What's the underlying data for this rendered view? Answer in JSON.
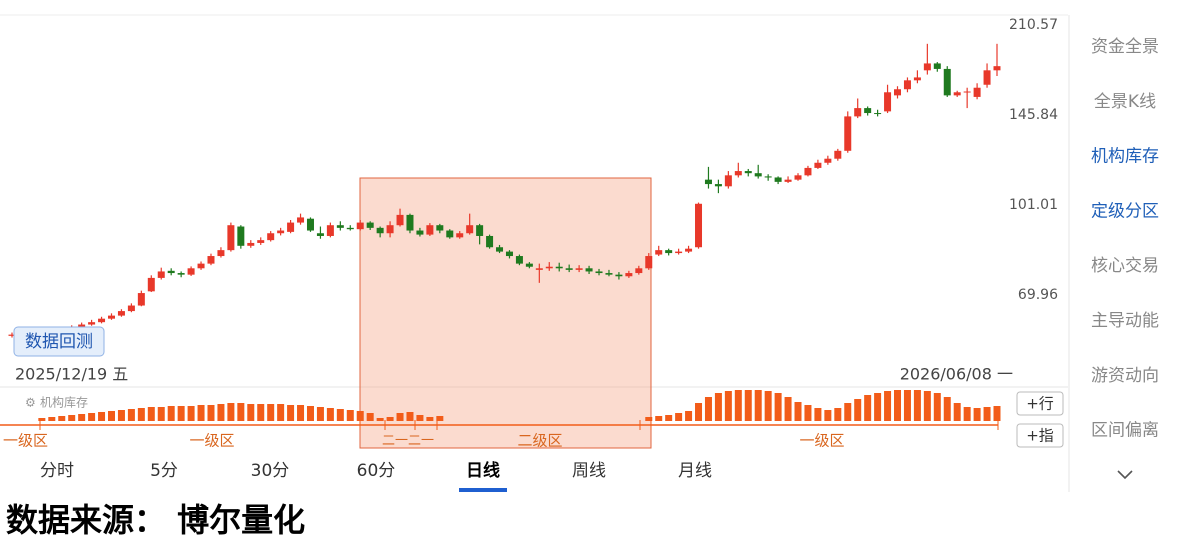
{
  "chart_data": {
    "type": "candlestick",
    "scale": "log",
    "ylim": [
      48.44,
      216.67
    ],
    "yticks": [
      69.96,
      101.01,
      145.84,
      210.57
    ],
    "start_label": "2025/12/19 五",
    "end_label": "2026/06/08 一",
    "up_color": "#e8382a",
    "down_color": "#1f7a1f",
    "open": [
      59.2,
      59.5,
      59.8,
      60.0,
      60.2,
      60.5,
      60.8,
      61.3,
      62.0,
      62.6,
      63.5,
      64.3,
      65.5,
      67.0,
      71.0,
      75.0,
      77.2,
      76.5,
      76.0,
      78.0,
      79.5,
      82.0,
      84.0,
      92.5,
      85.5,
      86.5,
      87.5,
      90.0,
      90.5,
      94.0,
      95.5,
      90.0,
      89.0,
      93.0,
      92.0,
      91.5,
      94.0,
      92.0,
      90.0,
      93.0,
      97.0,
      91.0,
      89.5,
      93.0,
      91.0,
      88.5,
      90.0,
      93.0,
      89.0,
      85.0,
      83.5,
      82.0,
      79.5,
      77.5,
      78.0,
      78.5,
      78.0,
      77.5,
      78.0,
      77.0,
      76.5,
      76.0,
      75.5,
      76.5,
      78.0,
      82.5,
      84.0,
      83.0,
      83.5,
      85.0,
      112,
      110,
      109,
      114,
      116,
      115,
      113.5,
      113,
      111,
      112,
      114,
      117.5,
      120,
      122,
      126,
      145,
      150,
      147,
      148,
      158,
      162,
      168,
      175,
      180,
      176,
      158,
      160,
      157,
      165,
      175
    ],
    "high": [
      60.0,
      60.2,
      60.5,
      60.7,
      61.0,
      61.3,
      61.8,
      62.5,
      63.2,
      64.0,
      64.9,
      66.0,
      67.6,
      71.2,
      75.8,
      78.2,
      78.0,
      77.0,
      78.6,
      80.2,
      82.8,
      85.0,
      94.0,
      93.0,
      87.5,
      88.5,
      90.8,
      92.0,
      95.0,
      97.5,
      96.0,
      92.5,
      94.0,
      94.5,
      93.0,
      95.0,
      94.5,
      92.5,
      94.5,
      99.5,
      97.5,
      92.0,
      93.8,
      93.5,
      91.5,
      90.8,
      97.5,
      93.5,
      89.5,
      85.8,
      84.0,
      82.5,
      80.0,
      79.5,
      80.0,
      79.8,
      79.2,
      79.0,
      78.8,
      77.8,
      77.5,
      76.8,
      77.2,
      78.8,
      83.0,
      85.5,
      84.5,
      84.5,
      85.5,
      102.0,
      118,
      112,
      116,
      120,
      117,
      119,
      114.5,
      113.5,
      113.5,
      115,
      118.5,
      121.5,
      123.5,
      127,
      148,
      156,
      151,
      149,
      165,
      164,
      170,
      175,
      195,
      181,
      178,
      161,
      163,
      166,
      180,
      195
    ],
    "low": [
      58.8,
      59.1,
      59.5,
      59.7,
      59.9,
      60.2,
      60.5,
      61.0,
      61.7,
      62.3,
      63.2,
      64.0,
      65.2,
      66.8,
      70.8,
      74.5,
      75.8,
      75.2,
      75.6,
      77.5,
      79.0,
      81.5,
      83.5,
      84.5,
      84.8,
      85.8,
      87.0,
      89.2,
      90.0,
      93.2,
      90.5,
      88.0,
      88.5,
      91.0,
      91.0,
      91.0,
      91.2,
      88.5,
      88.5,
      92.5,
      90.0,
      88.8,
      89.0,
      90.0,
      88.0,
      88.0,
      89.5,
      86.0,
      84.5,
      83.0,
      81.2,
      79.0,
      78.0,
      73.5,
      77.2,
      77.0,
      76.8,
      76.8,
      76.2,
      75.8,
      75.5,
      74.5,
      75.0,
      76.0,
      77.5,
      82.0,
      82.2,
      82.5,
      83.0,
      84.5,
      108,
      106,
      108,
      113,
      113.5,
      112.5,
      111.5,
      110,
      110.5,
      111.5,
      113.5,
      117,
      119,
      121,
      125,
      144,
      145.5,
      145,
      147,
      156,
      160,
      166,
      172,
      174,
      157,
      157,
      150,
      155.5,
      163,
      171
    ],
    "close": [
      59.5,
      59.8,
      60.0,
      60.2,
      60.5,
      60.8,
      61.3,
      62.0,
      62.6,
      63.5,
      64.3,
      65.5,
      67.0,
      70.5,
      75.0,
      77.0,
      76.5,
      76.0,
      78.0,
      79.5,
      82.0,
      84.0,
      93.0,
      85.5,
      86.5,
      87.5,
      90.0,
      91.0,
      94.0,
      96.0,
      91.0,
      89.0,
      93.0,
      92.0,
      91.5,
      94.0,
      92.0,
      90.0,
      93.0,
      97.0,
      91.0,
      89.5,
      93.0,
      91.0,
      88.5,
      90.0,
      93.0,
      89.0,
      85.0,
      83.5,
      82.0,
      79.5,
      78.5,
      78.0,
      78.5,
      78.0,
      77.5,
      78.0,
      77.0,
      76.5,
      76.0,
      75.5,
      76.5,
      78.0,
      82.0,
      84.0,
      83.0,
      83.5,
      84.5,
      101.5,
      110,
      109,
      114,
      116,
      115,
      113.5,
      113,
      111,
      112,
      114,
      117.5,
      120,
      122,
      126,
      145,
      150,
      147,
      146.5,
      160,
      162,
      168,
      170,
      180,
      176,
      158,
      160,
      160.5,
      163,
      175,
      178
    ],
    "indicator": {
      "name": "机构库存",
      "color": "#f25c19",
      "values": [
        0,
        0,
        0,
        3,
        4,
        5,
        6,
        7,
        8,
        9,
        10,
        11,
        12,
        13,
        14,
        14,
        15,
        15,
        15,
        16,
        16,
        17,
        18,
        18,
        17,
        17,
        17,
        17,
        16,
        16,
        15,
        14,
        13,
        12,
        11,
        10,
        8,
        3,
        4,
        8,
        9,
        6,
        4,
        5,
        0,
        0,
        0,
        0,
        0,
        0,
        0,
        0,
        0,
        0,
        0,
        0,
        0,
        0,
        0,
        0,
        0,
        0,
        0,
        0,
        4,
        5,
        6,
        8,
        10,
        18,
        24,
        28,
        30,
        31,
        31,
        31,
        30,
        28,
        24,
        19,
        16,
        13,
        11,
        13,
        18,
        22,
        26,
        28,
        30,
        31,
        31,
        31,
        30,
        28,
        24,
        18,
        14,
        13,
        14,
        15
      ],
      "zones": [
        "一级区",
        "一级区",
        "二一二一",
        "二级区",
        "一级区"
      ]
    }
  },
  "backtest_button": "数据回测",
  "side_buttons": [
    "+行",
    "+指"
  ],
  "side_menu": [
    {
      "label": "资金全景",
      "active": false
    },
    {
      "label": "全景K线",
      "active": false
    },
    {
      "label": "机构库存",
      "active": true
    },
    {
      "label": "定级分区",
      "active": true
    },
    {
      "label": "核心交易",
      "active": false
    },
    {
      "label": "主导动能",
      "active": false
    },
    {
      "label": "游资动向",
      "active": false
    },
    {
      "label": "区间偏离",
      "active": false
    }
  ],
  "tabs": {
    "items": [
      "分时",
      "5分",
      "30分",
      "60分",
      "日线",
      "周线",
      "月线"
    ],
    "selected": 4
  },
  "footer": "数据来源： 博尔量化"
}
